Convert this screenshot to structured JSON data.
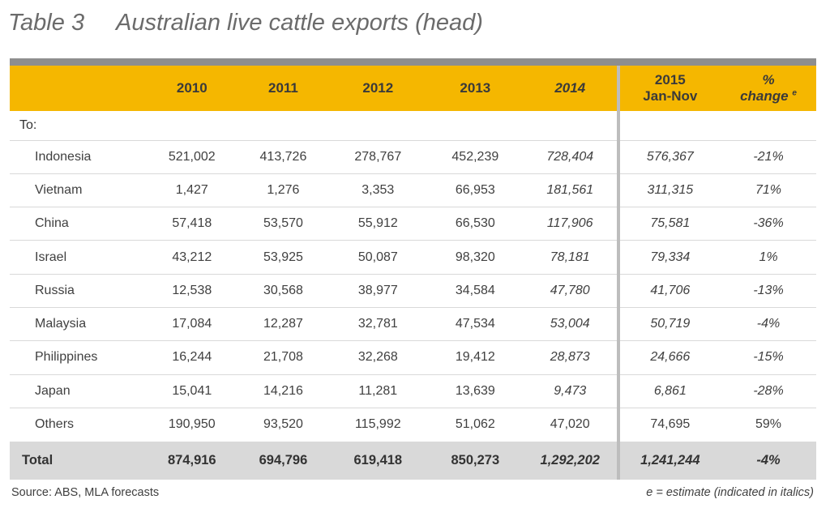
{
  "title": {
    "number": "Table 3",
    "text": "Australian live cattle exports (head)"
  },
  "table": {
    "headers": [
      {
        "label": "2010",
        "italic": false
      },
      {
        "label": "2011",
        "italic": false
      },
      {
        "label": "2012",
        "italic": false
      },
      {
        "label": "2013",
        "italic": false
      },
      {
        "label": "2014",
        "italic": true
      },
      {
        "label": "2015",
        "sub": "Jan-Nov",
        "italic": false
      },
      {
        "label": "%",
        "sub": "change",
        "sup": "e",
        "italic": true
      }
    ],
    "to_label": "To:",
    "rows": [
      {
        "country": "Indonesia",
        "values": [
          "521,002",
          "413,726",
          "278,767",
          "452,239",
          "728,404",
          "576,367",
          "-21%"
        ],
        "italic": [
          false,
          false,
          false,
          false,
          true,
          true,
          true
        ]
      },
      {
        "country": "Vietnam",
        "values": [
          "1,427",
          "1,276",
          "3,353",
          "66,953",
          "181,561",
          "311,315",
          "71%"
        ],
        "italic": [
          false,
          false,
          false,
          false,
          true,
          true,
          true
        ]
      },
      {
        "country": "China",
        "values": [
          "57,418",
          "53,570",
          "55,912",
          "66,530",
          "117,906",
          "75,581",
          "-36%"
        ],
        "italic": [
          false,
          false,
          false,
          false,
          true,
          true,
          true
        ]
      },
      {
        "country": "Israel",
        "values": [
          "43,212",
          "53,925",
          "50,087",
          "98,320",
          "78,181",
          "79,334",
          "1%"
        ],
        "italic": [
          false,
          false,
          false,
          false,
          true,
          true,
          true
        ]
      },
      {
        "country": "Russia",
        "values": [
          "12,538",
          "30,568",
          "38,977",
          "34,584",
          "47,780",
          "41,706",
          "-13%"
        ],
        "italic": [
          false,
          false,
          false,
          false,
          true,
          true,
          true
        ]
      },
      {
        "country": "Malaysia",
        "values": [
          "17,084",
          "12,287",
          "32,781",
          "47,534",
          "53,004",
          "50,719",
          "-4%"
        ],
        "italic": [
          false,
          false,
          false,
          false,
          true,
          true,
          true
        ]
      },
      {
        "country": "Philippines",
        "values": [
          "16,244",
          "21,708",
          "32,268",
          "19,412",
          "28,873",
          "24,666",
          "-15%"
        ],
        "italic": [
          false,
          false,
          false,
          false,
          true,
          true,
          true
        ]
      },
      {
        "country": "Japan",
        "values": [
          "15,041",
          "14,216",
          "11,281",
          "13,639",
          "9,473",
          "6,861",
          "-28%"
        ],
        "italic": [
          false,
          false,
          false,
          false,
          true,
          true,
          true
        ]
      },
      {
        "country": "Others",
        "values": [
          "190,950",
          "93,520",
          "115,992",
          "51,062",
          "47,020",
          "74,695",
          "59%"
        ],
        "italic": [
          false,
          false,
          false,
          false,
          false,
          false,
          false
        ]
      }
    ],
    "total": {
      "label": "Total",
      "values": [
        "874,916",
        "694,796",
        "619,418",
        "850,273",
        "1,292,202",
        "1,241,244",
        "-4%"
      ],
      "italic": [
        false,
        false,
        false,
        false,
        true,
        true,
        true
      ]
    }
  },
  "footer": {
    "source": "Source: ABS, MLA forecasts",
    "note": "e = estimate (indicated in italics)"
  },
  "colors": {
    "header_bg": "#f5b700",
    "top_bar": "#8e8e8e",
    "total_bg": "#d9d9d9",
    "divider": "#bdbdbd"
  }
}
